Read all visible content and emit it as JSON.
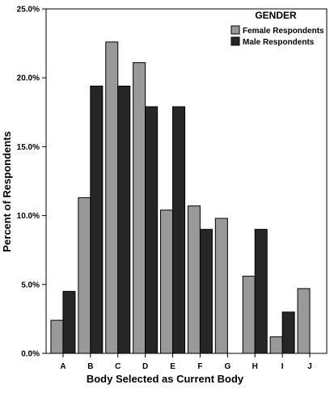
{
  "chart_data": {
    "type": "bar",
    "xlabel": "Body Selected as Current Body",
    "ylabel": "Percent of Respondents",
    "categories": [
      "A",
      "B",
      "C",
      "D",
      "E",
      "F",
      "G",
      "H",
      "I",
      "J"
    ],
    "ylim": [
      0,
      25
    ],
    "yticks": [
      0,
      5,
      10,
      15,
      20,
      25
    ],
    "ytick_labels": [
      "0.0%",
      "5.0%",
      "10.0%",
      "15.0%",
      "20.0%",
      "25.0%"
    ],
    "grid": false,
    "legend": {
      "title": "GENDER",
      "position": "top-right"
    },
    "series": [
      {
        "name": "Female Respondents",
        "color": "#999999",
        "values": [
          2.4,
          11.3,
          22.6,
          21.1,
          10.4,
          10.7,
          9.8,
          5.6,
          1.2,
          4.7
        ]
      },
      {
        "name": "Male Respondents",
        "color": "#262626",
        "values": [
          4.5,
          19.4,
          19.4,
          17.9,
          17.9,
          9.0,
          0,
          9.0,
          3.0,
          0
        ]
      }
    ]
  }
}
